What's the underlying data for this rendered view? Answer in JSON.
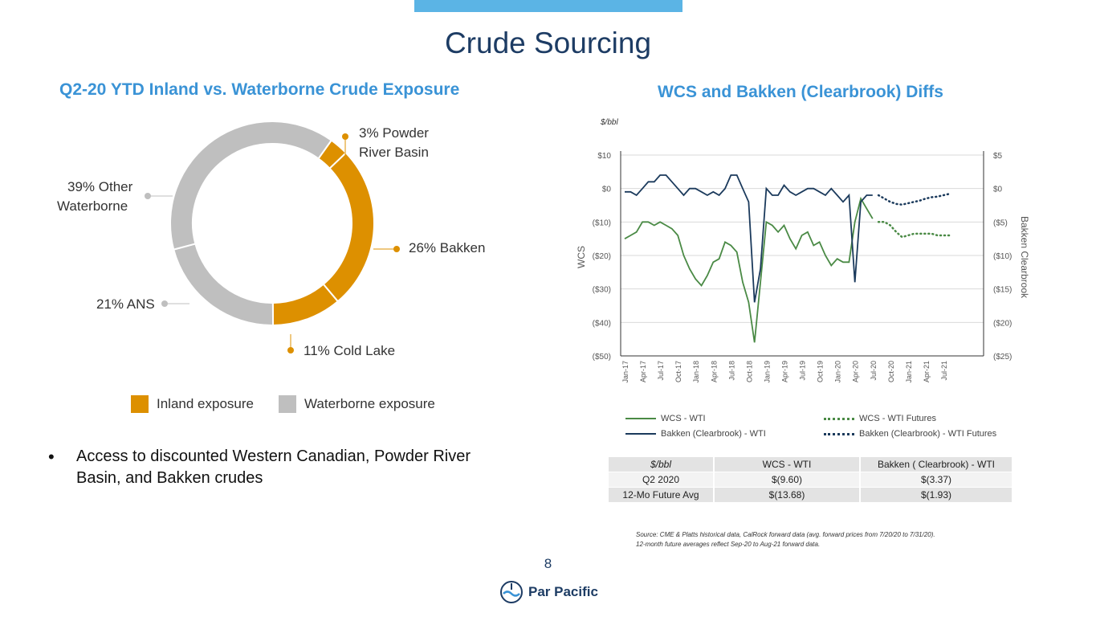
{
  "title": "Crude Sourcing",
  "left": {
    "subtitle": "Q2-20 YTD Inland vs. Waterborne Crude Exposure",
    "labels": {
      "powder_line1": "3% Powder",
      "powder_line2": "River Basin",
      "other_line1": "39% Other",
      "other_line2": "Waterborne",
      "bakken": "26% Bakken",
      "ans": "21% ANS",
      "cold_lake": "11% Cold Lake"
    },
    "legend": {
      "inland": "Inland exposure",
      "waterborne": "Waterborne exposure"
    },
    "bullet": "Access to discounted Western Canadian, Powder River Basin, and Bakken crudes"
  },
  "right": {
    "subtitle": "WCS and Bakken (Clearbrook) Diffs",
    "legend": {
      "wcs": "WCS - WTI",
      "wcs_fut": "WCS - WTI Futures",
      "bak": "Bakken (Clearbrook) - WTI",
      "bak_fut": "Bakken (Clearbrook) - WTI Futures"
    }
  },
  "chart_data": [
    {
      "type": "pie",
      "title": "Q2-20 YTD Inland vs. Waterborne Crude Exposure",
      "slices": [
        {
          "label": "Powder River Basin",
          "value": 3,
          "group": "Inland exposure"
        },
        {
          "label": "Bakken",
          "value": 26,
          "group": "Inland exposure"
        },
        {
          "label": "Cold Lake",
          "value": 11,
          "group": "Inland exposure"
        },
        {
          "label": "ANS",
          "value": 21,
          "group": "Waterborne exposure"
        },
        {
          "label": "Other Waterborne",
          "value": 39,
          "group": "Waterborne exposure"
        }
      ],
      "colors": {
        "Inland exposure": "#dd9000",
        "Waterborne exposure": "#bfbfbf"
      }
    },
    {
      "type": "line",
      "title": "WCS and Bakken (Clearbrook) Diffs",
      "unit_label": "$/bbl",
      "ylabel": "WCS",
      "y2label": "Bakken Clearbrook",
      "ylim": [
        -50,
        10
      ],
      "y2lim": [
        -25,
        5
      ],
      "yticks": [
        "$10",
        "$0",
        "($10)",
        "($20)",
        "($30)",
        "($40)",
        "($50)"
      ],
      "y2ticks": [
        "$5",
        "$0",
        "($5)",
        "($10)",
        "($15)",
        "($20)",
        "($25)"
      ],
      "xticks": [
        "Jan-17",
        "Apr-17",
        "Jul-17",
        "Oct-17",
        "Jan-18",
        "Apr-18",
        "Jul-18",
        "Oct-18",
        "Jan-19",
        "Apr-19",
        "Jul-19",
        "Oct-19",
        "Jan-20",
        "Apr-20",
        "Jul-20",
        "Oct-20",
        "Jan-21",
        "Apr-21",
        "Jul-21"
      ],
      "series": [
        {
          "name": "WCS - WTI",
          "axis": "left",
          "color": "#4a8a45",
          "style": "solid",
          "x": [
            "2017-01",
            "2017-02",
            "2017-03",
            "2017-04",
            "2017-05",
            "2017-06",
            "2017-07",
            "2017-08",
            "2017-09",
            "2017-10",
            "2017-11",
            "2017-12",
            "2018-01",
            "2018-02",
            "2018-03",
            "2018-04",
            "2018-05",
            "2018-06",
            "2018-07",
            "2018-08",
            "2018-09",
            "2018-10",
            "2018-11",
            "2018-12",
            "2019-01",
            "2019-02",
            "2019-03",
            "2019-04",
            "2019-05",
            "2019-06",
            "2019-07",
            "2019-08",
            "2019-09",
            "2019-10",
            "2019-11",
            "2019-12",
            "2020-01",
            "2020-02",
            "2020-03",
            "2020-04",
            "2020-05",
            "2020-06",
            "2020-07"
          ],
          "y": [
            -15,
            -14,
            -13,
            -10,
            -10,
            -11,
            -10,
            -11,
            -12,
            -14,
            -20,
            -24,
            -27,
            -29,
            -26,
            -22,
            -21,
            -16,
            -17,
            -19,
            -28,
            -34,
            -46,
            -28,
            -10,
            -11,
            -13,
            -11,
            -15,
            -18,
            -14,
            -13,
            -17,
            -16,
            -20,
            -23,
            -21,
            -22,
            -22,
            -10,
            -3,
            -6,
            -9
          ]
        },
        {
          "name": "WCS - WTI Futures",
          "axis": "left",
          "color": "#4a8a45",
          "style": "dotted",
          "x": [
            "2020-08",
            "2020-09",
            "2020-10",
            "2020-11",
            "2020-12",
            "2021-01",
            "2021-02",
            "2021-03",
            "2021-04",
            "2021-05",
            "2021-06",
            "2021-07",
            "2021-08"
          ],
          "y": [
            -10,
            -10,
            -11,
            -13,
            -14.5,
            -14,
            -13.5,
            -13.5,
            -13.5,
            -13.5,
            -14,
            -14,
            -14
          ]
        },
        {
          "name": "Bakken (Clearbrook) - WTI",
          "axis": "right",
          "color": "#1b3a5c",
          "style": "solid",
          "x": [
            "2017-01",
            "2017-02",
            "2017-03",
            "2017-04",
            "2017-05",
            "2017-06",
            "2017-07",
            "2017-08",
            "2017-09",
            "2017-10",
            "2017-11",
            "2017-12",
            "2018-01",
            "2018-02",
            "2018-03",
            "2018-04",
            "2018-05",
            "2018-06",
            "2018-07",
            "2018-08",
            "2018-09",
            "2018-10",
            "2018-11",
            "2018-12",
            "2019-01",
            "2019-02",
            "2019-03",
            "2019-04",
            "2019-05",
            "2019-06",
            "2019-07",
            "2019-08",
            "2019-09",
            "2019-10",
            "2019-11",
            "2019-12",
            "2020-01",
            "2020-02",
            "2020-03",
            "2020-04",
            "2020-05",
            "2020-06",
            "2020-07"
          ],
          "y": [
            -0.5,
            -0.5,
            -1,
            0,
            1,
            1,
            2,
            2,
            1,
            0,
            -1,
            0,
            0,
            -0.5,
            -1,
            -0.5,
            -1,
            0,
            2,
            2,
            0,
            -2,
            -17,
            -12,
            0,
            -1,
            -1,
            0.5,
            -0.5,
            -1,
            -0.5,
            0,
            0,
            -0.5,
            -1,
            0,
            -1,
            -2,
            -1,
            -14,
            -2,
            -1,
            -1
          ]
        },
        {
          "name": "Bakken (Clearbrook) - WTI Futures",
          "axis": "right",
          "color": "#1b3a5c",
          "style": "dotted",
          "x": [
            "2020-08",
            "2020-09",
            "2020-10",
            "2020-11",
            "2020-12",
            "2021-01",
            "2021-02",
            "2021-03",
            "2021-04",
            "2021-05",
            "2021-06",
            "2021-07",
            "2021-08"
          ],
          "y": [
            -1,
            -1.5,
            -2,
            -2.3,
            -2.4,
            -2.2,
            -2,
            -1.8,
            -1.5,
            -1.3,
            -1.2,
            -1,
            -0.8
          ]
        }
      ]
    },
    {
      "type": "table",
      "columns": [
        "$/bbl",
        "WCS - WTI",
        "Bakken ( Clearbrook) - WTI"
      ],
      "rows": [
        [
          "Q2 2020",
          "$(9.60)",
          "$(3.37)"
        ],
        [
          "12-Mo Future Avg",
          "$(13.68)",
          "$(1.93)"
        ]
      ]
    }
  ],
  "source_line1": "Source: CME & Platts historical data, CalRock forward data (avg. forward prices from 7/20/20 to 7/31/20).",
  "source_line2": "12-month future averages reflect Sep-20 to Aug-21 forward data.",
  "page_number": "8",
  "logo_text": "Par Pacific"
}
